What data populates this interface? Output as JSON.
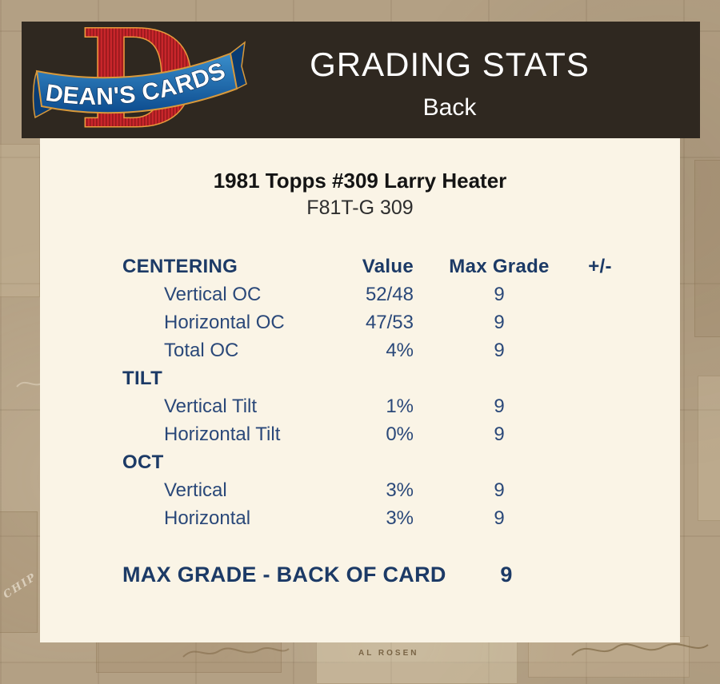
{
  "header": {
    "title": "GRADING STATS",
    "subtitle": "Back",
    "logo_letter": "D",
    "logo_text": "DEAN'S CARDS"
  },
  "card": {
    "title": "1981 Topps #309 Larry Heater",
    "code": "F81T-G 309"
  },
  "table": {
    "columns": [
      "Value",
      "Max Grade",
      "+/-"
    ],
    "sections": [
      {
        "name": "CENTERING",
        "rows": [
          {
            "label": "Vertical OC",
            "value": "52/48",
            "max_grade": "9",
            "plus_minus": ""
          },
          {
            "label": "Horizontal OC",
            "value": "47/53",
            "max_grade": "9",
            "plus_minus": ""
          },
          {
            "label": "Total OC",
            "value": "4%",
            "max_grade": "9",
            "plus_minus": ""
          }
        ]
      },
      {
        "name": "TILT",
        "rows": [
          {
            "label": "Vertical Tilt",
            "value": "1%",
            "max_grade": "9",
            "plus_minus": ""
          },
          {
            "label": "Horizontal Tilt",
            "value": "0%",
            "max_grade": "9",
            "plus_minus": ""
          }
        ]
      },
      {
        "name": "OCT",
        "rows": [
          {
            "label": "Vertical",
            "value": "3%",
            "max_grade": "9",
            "plus_minus": ""
          },
          {
            "label": "Horizontal",
            "value": "3%",
            "max_grade": "9",
            "plus_minus": ""
          }
        ]
      }
    ]
  },
  "summary": {
    "label": "MAX GRADE - BACK OF CARD",
    "value": "9"
  },
  "background": {
    "caption": "AL ROSEN",
    "corner_text": "CHIP"
  },
  "colors": {
    "page_background_tan": "#b3a084",
    "header_bar_brown": "#2f2820",
    "panel_cream": "#faf4e6",
    "heading_navy": "#1c3a66",
    "row_navy": "#2a4879",
    "logo_red": "#c8262b",
    "logo_blue": "#0d4c8f",
    "logo_gold": "#e89b3c"
  }
}
